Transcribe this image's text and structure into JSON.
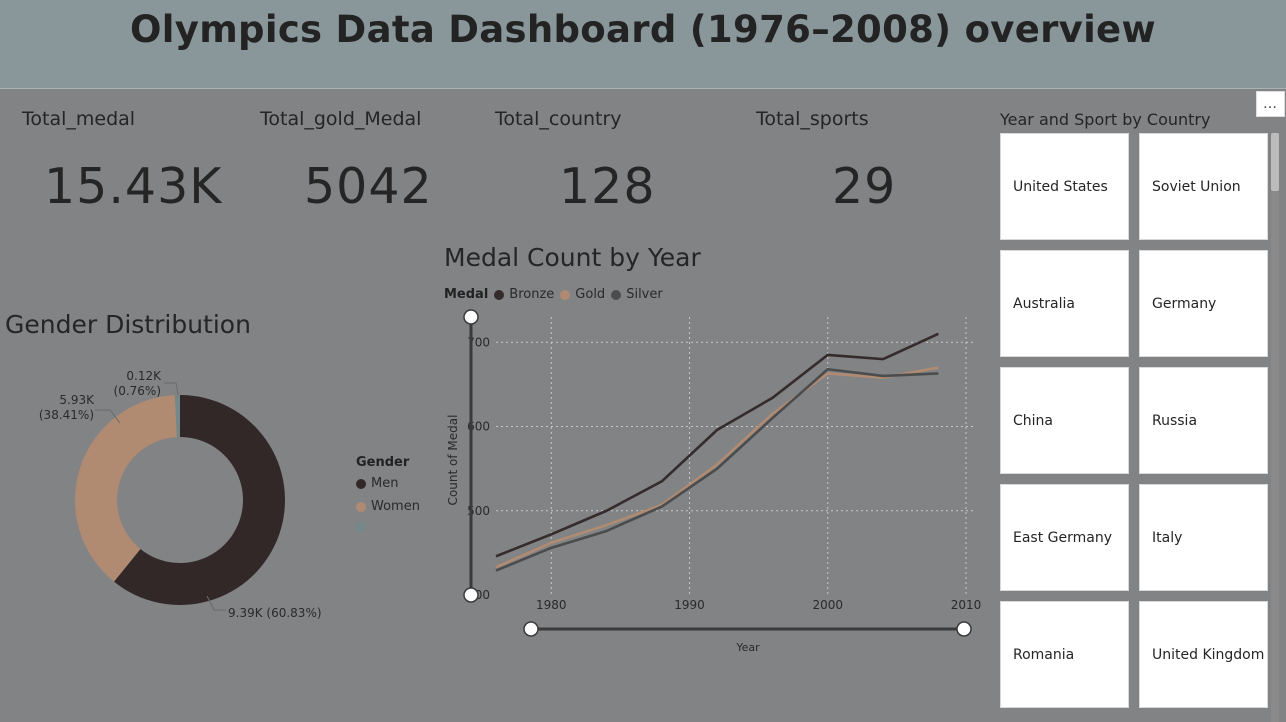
{
  "header": {
    "title": "Olympics Data Dashboard (1976–2008) overview"
  },
  "kpis": {
    "total_medal": {
      "label": "Total_medal",
      "value": "15.43K"
    },
    "total_gold": {
      "label": "Total_gold_Medal",
      "value": "5042"
    },
    "total_country": {
      "label": "Total_country",
      "value": "128"
    },
    "total_sports": {
      "label": "Total_sports",
      "value": "29"
    }
  },
  "gender": {
    "title": "Gender Distribution",
    "legend_title": "Gender",
    "legend": [
      "Men",
      "Women",
      ""
    ],
    "labels": {
      "men": "9.39K (60.83%)",
      "women_value": "5.93K",
      "women_pct": "(38.41%)",
      "other_value": "0.12K",
      "other_pct": "(0.76%)"
    }
  },
  "medal_chart": {
    "title": "Medal Count by Year",
    "legend_title": "Medal",
    "xlabel": "Year",
    "ylabel": "Count of Medal",
    "x_ticks": [
      "1980",
      "1990",
      "2000",
      "2010"
    ],
    "y_ticks": [
      "700",
      "600",
      "500",
      "400"
    ]
  },
  "slicer": {
    "title": "Year and Sport by Country",
    "more_label": "…",
    "countries": [
      "United States",
      "Soviet Union",
      "Australia",
      "Germany",
      "China",
      "Russia",
      "East Germany",
      "Italy",
      "Romania",
      "United Kingdom"
    ]
  },
  "colors": {
    "men": "#332828",
    "women": "#b08b72",
    "other": "#74878a",
    "bronze": "#352b2b",
    "gold": "#b08b72",
    "silver": "#4b4c4e"
  },
  "chart_data": [
    {
      "type": "pie",
      "title": "Gender Distribution",
      "categories": [
        "Men",
        "Women",
        ""
      ],
      "values": [
        9390,
        5930,
        120
      ],
      "percentages": [
        60.83,
        38.41,
        0.76
      ]
    },
    {
      "type": "line",
      "title": "Medal Count by Year",
      "xlabel": "Year",
      "ylabel": "Count of Medal",
      "x": [
        1976,
        1980,
        1984,
        1988,
        1992,
        1996,
        2000,
        2004,
        2008
      ],
      "xlim": [
        1976,
        2010
      ],
      "ylim": [
        400,
        730
      ],
      "series": [
        {
          "name": "Bronze",
          "values": [
            446,
            472,
            500,
            535,
            596,
            634,
            685,
            680,
            710
          ]
        },
        {
          "name": "Gold",
          "values": [
            433,
            462,
            483,
            507,
            555,
            615,
            663,
            658,
            670
          ]
        },
        {
          "name": "Silver",
          "values": [
            429,
            456,
            476,
            505,
            550,
            610,
            668,
            660,
            663
          ]
        }
      ],
      "legend": "top",
      "grid": true
    }
  ]
}
